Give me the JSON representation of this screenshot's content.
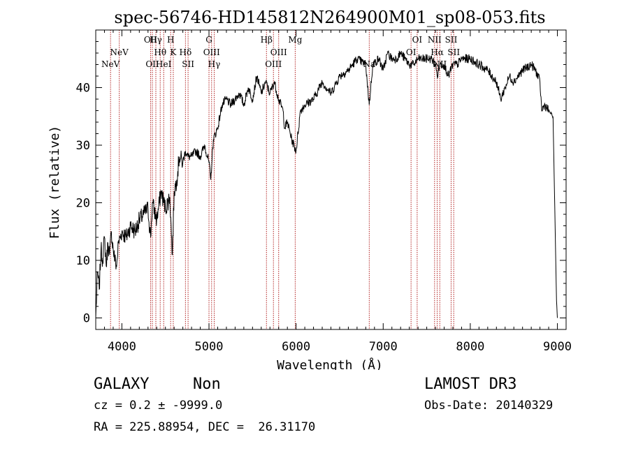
{
  "chart_data": {
    "type": "line",
    "title": "spec-56746-HD145812N264900M01_sp08-053.fits",
    "xlabel": "Wavelength (Å)",
    "ylabel": "Flux (relative)",
    "xlim": [
      3700,
      9100
    ],
    "ylim": [
      -2,
      50
    ],
    "x_ticks": [
      4000,
      5000,
      6000,
      7000,
      8000,
      9000
    ],
    "y_ticks": [
      0,
      10,
      20,
      30,
      40
    ],
    "grid": false,
    "line_color": "#000000",
    "marker_color": "#b22222",
    "series": [
      {
        "x": [
          3700,
          3720,
          3740,
          3760,
          3780,
          3800,
          3820,
          3840,
          3860,
          3880,
          3900,
          3920,
          3940,
          3960,
          3980,
          4000,
          4050,
          4100,
          4150,
          4200,
          4250,
          4300,
          4330,
          4350,
          4400,
          4450,
          4500,
          4550,
          4580,
          4600,
          4630,
          4660,
          4700,
          4730,
          4760,
          4800,
          4850,
          4900,
          4950,
          5000,
          5020,
          5050,
          5100,
          5150,
          5200,
          5250,
          5300,
          5350,
          5400,
          5450,
          5500,
          5550,
          5600,
          5650,
          5700,
          5750,
          5800,
          5850,
          5870,
          5900,
          5950,
          6000,
          6050,
          6100,
          6200,
          6300,
          6400,
          6500,
          6600,
          6700,
          6800,
          6840,
          6880,
          6950,
          7000,
          7050,
          7100,
          7150,
          7200,
          7250,
          7300,
          7350,
          7400,
          7450,
          7500,
          7550,
          7600,
          7620,
          7650,
          7700,
          7750,
          7800,
          7850,
          7900,
          8000,
          8100,
          8200,
          8300,
          8350,
          8400,
          8450,
          8500,
          8600,
          8700,
          8750,
          8800,
          8820,
          8850,
          8900,
          8950,
          8990,
          9000
        ],
        "y": [
          0,
          8,
          5,
          12,
          10,
          14,
          9,
          13,
          11,
          15,
          12,
          10,
          9,
          13,
          14,
          15,
          14,
          16,
          15,
          17,
          18,
          19,
          14,
          20,
          17,
          22,
          19,
          21,
          11,
          22,
          24,
          28,
          27,
          29,
          28,
          28,
          29,
          28,
          30,
          27,
          24,
          31,
          33,
          37,
          38,
          37,
          38,
          39,
          37,
          40,
          38,
          42,
          39,
          41,
          39,
          41,
          38,
          36,
          33,
          34,
          31,
          29,
          36,
          37,
          38,
          41,
          39,
          42,
          43,
          45,
          44,
          37,
          44,
          45,
          43,
          46,
          45,
          45,
          46,
          45,
          44,
          44,
          45,
          45,
          45,
          45,
          44,
          42,
          44,
          44,
          42,
          44,
          44,
          45,
          45,
          44,
          43,
          41,
          38,
          40,
          42,
          41,
          43,
          44,
          43,
          41,
          36,
          37,
          36,
          35,
          3,
          0
        ]
      }
    ],
    "lines": [
      {
        "label": "NeV",
        "x": 3870,
        "row": 2
      },
      {
        "label": "NeV",
        "x": 3970,
        "row": 1
      },
      {
        "label": "OII",
        "x": 4330,
        "row": 0
      },
      {
        "label": "OII",
        "x": 4350,
        "row": 2
      },
      {
        "label": "Hγ",
        "x": 4390,
        "row": 0
      },
      {
        "label": "Hθ",
        "x": 4440,
        "row": 1
      },
      {
        "label": "HeI",
        "x": 4480,
        "row": 2
      },
      {
        "label": "H",
        "x": 4560,
        "row": 0
      },
      {
        "label": "K",
        "x": 4590,
        "row": 1
      },
      {
        "label": "Hδ",
        "x": 4730,
        "row": 1
      },
      {
        "label": "SII",
        "x": 4760,
        "row": 2
      },
      {
        "label": "G",
        "x": 5000,
        "row": 0
      },
      {
        "label": "OIII",
        "x": 5030,
        "row": 1
      },
      {
        "label": "Hγ",
        "x": 5060,
        "row": 2
      },
      {
        "label": "Hβ",
        "x": 5660,
        "row": 0
      },
      {
        "label": "OIII",
        "x": 5740,
        "row": 2
      },
      {
        "label": "OIII",
        "x": 5800,
        "row": 1
      },
      {
        "label": "Mg",
        "x": 5990,
        "row": 0
      },
      {
        "label": "Na",
        "x": 6840,
        "row": 2
      },
      {
        "label": "OI",
        "x": 7320,
        "row": 1
      },
      {
        "label": "OI",
        "x": 7390,
        "row": 0
      },
      {
        "label": "NII",
        "x": 7590,
        "row": 0
      },
      {
        "label": "Hα",
        "x": 7620,
        "row": 1
      },
      {
        "label": "NII",
        "x": 7650,
        "row": 2
      },
      {
        "label": "SII",
        "x": 7780,
        "row": 0
      },
      {
        "label": "SII",
        "x": 7810,
        "row": 1
      }
    ]
  },
  "info": {
    "class": "GALAXY",
    "subclass": "Non",
    "cz": "cz = 0.2 ± -9999.0",
    "radec": "RA = 225.88954, DEC =  26.31170",
    "survey": "LAMOST DR3",
    "obs_date": "Obs-Date: 20140329"
  }
}
